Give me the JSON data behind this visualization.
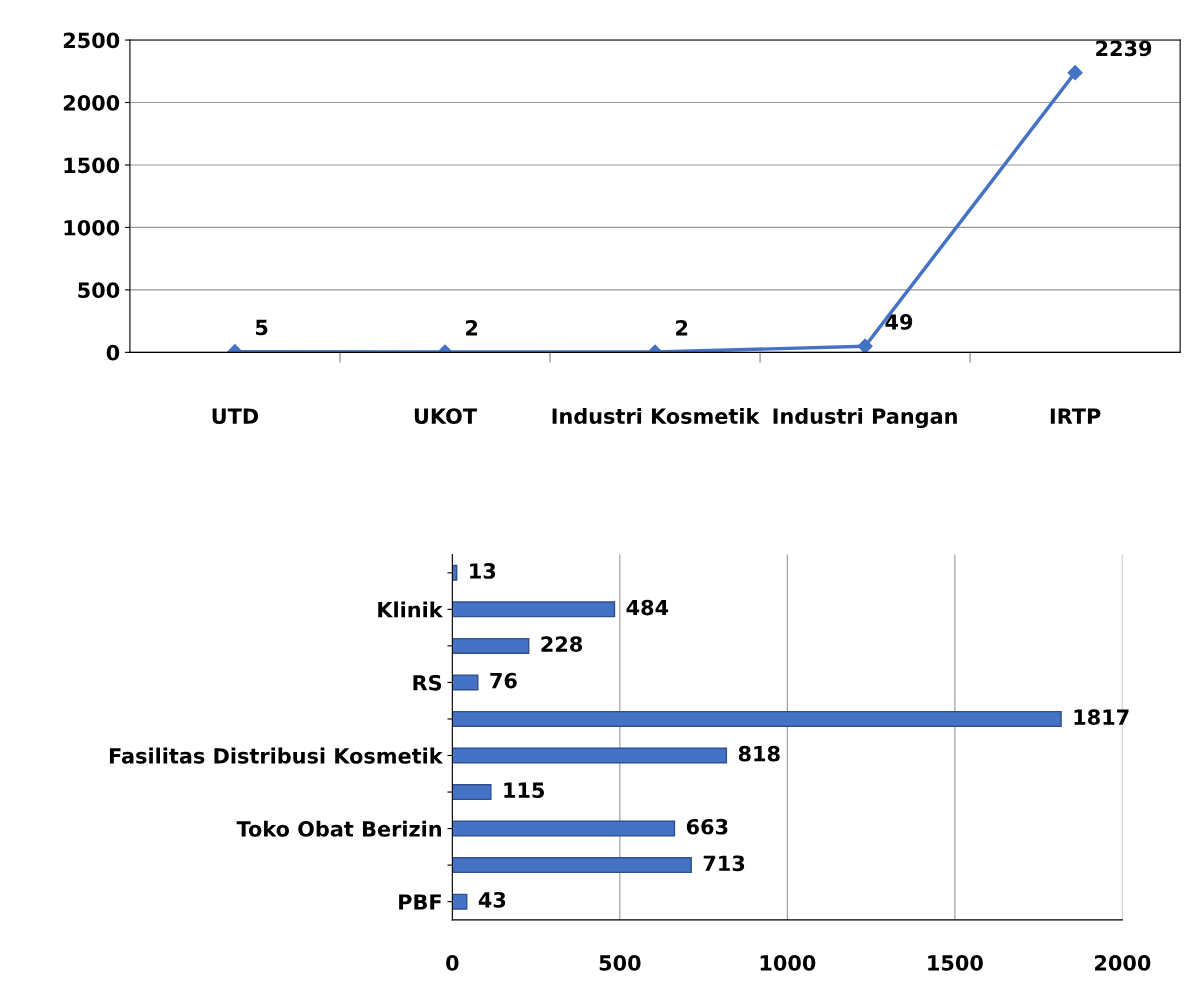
{
  "chart_data": [
    {
      "type": "line",
      "categories": [
        "UTD",
        "UKOT",
        "Industri Kosmetik",
        "Industri Pangan",
        "IRTP"
      ],
      "series": [
        {
          "color": "#4472c4",
          "values": [
            5,
            2,
            2,
            49,
            2239
          ]
        }
      ],
      "ylim": [
        0,
        2500
      ],
      "yticks": [
        0,
        500,
        1000,
        1500,
        2000,
        2500
      ],
      "grid": "y",
      "marker": "diamond",
      "data_labels": true,
      "legend": false
    },
    {
      "type": "bar",
      "orientation": "horizontal",
      "categories": [
        null,
        "Klinik",
        null,
        "RS",
        null,
        "Fasilitas Distribusi Kosmetik",
        null,
        "Toko Obat Berizin",
        null,
        "PBF"
      ],
      "values": [
        13,
        484,
        228,
        76,
        1817,
        818,
        115,
        663,
        713,
        43
      ],
      "color": "#4472c4",
      "xlim": [
        0,
        2000
      ],
      "xticks": [
        0,
        500,
        1000,
        1500,
        2000
      ],
      "grid": "x",
      "data_labels": true,
      "legend": false
    }
  ]
}
